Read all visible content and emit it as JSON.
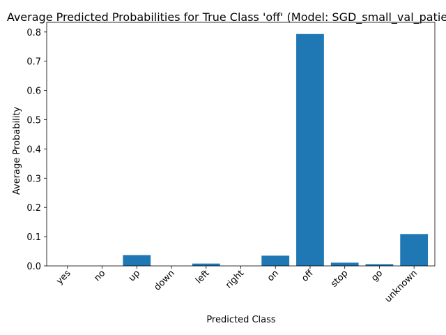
{
  "chart_data": {
    "type": "bar",
    "title": "Average Predicted Probabilities for True Class 'off' (Model: SGD_small_val_patie",
    "xlabel": "Predicted Class",
    "ylabel": "Average Probability",
    "categories": [
      "yes",
      "no",
      "up",
      "down",
      "left",
      "right",
      "on",
      "off",
      "stop",
      "go",
      "unknown"
    ],
    "values": [
      0.0,
      0.0,
      0.037,
      0.0,
      0.008,
      0.0,
      0.035,
      0.793,
      0.011,
      0.006,
      0.109
    ],
    "ylim": [
      0,
      0.833
    ],
    "yticks": [
      0.0,
      0.1,
      0.2,
      0.3,
      0.4,
      0.5,
      0.6,
      0.7,
      0.8
    ],
    "ytick_labels": [
      "0.0",
      "0.1",
      "0.2",
      "0.3",
      "0.4",
      "0.5",
      "0.6",
      "0.7",
      "0.8"
    ],
    "bar_color": "#1f77b4",
    "grid": false,
    "legend": "none"
  }
}
